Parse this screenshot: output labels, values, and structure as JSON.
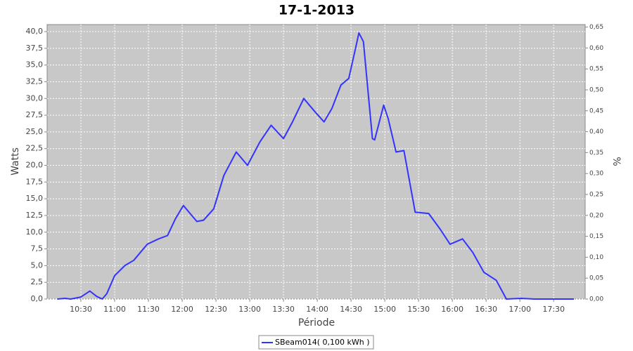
{
  "chart_data": {
    "type": "line",
    "title": "17-1-2013",
    "x_label": "Période",
    "y_label": "Watts",
    "y2_label": "%",
    "x": [
      "10:09",
      "10:16",
      "10:21",
      "10:30",
      "10:38",
      "10:44",
      "10:49",
      "10:53",
      "11:00",
      "11:09",
      "11:17",
      "11:29",
      "11:39",
      "11:47",
      "11:54",
      "12:01",
      "12:07",
      "12:13",
      "12:19",
      "12:28",
      "12:37",
      "12:48",
      "12:58",
      "13:09",
      "13:19",
      "13:30",
      "13:38",
      "13:48",
      "13:58",
      "14:06",
      "14:13",
      "14:21",
      "14:28",
      "14:34",
      "14:37",
      "14:41",
      "14:49",
      "14:51",
      "14:59",
      "15:03",
      "15:10",
      "15:17",
      "15:27",
      "15:39",
      "15:49",
      "15:58",
      "16:09",
      "16:18",
      "16:28",
      "16:39",
      "16:48",
      "17:01",
      "17:13",
      "17:48"
    ],
    "series": [
      {
        "name": "SBeam014( 0,100 kWh )",
        "color": "#3333ff",
        "values": [
          0,
          0.1,
          0,
          0.3,
          1.2,
          0.4,
          0,
          0.8,
          3.5,
          5.0,
          5.8,
          8.2,
          9.0,
          9.5,
          12.0,
          14.0,
          12.8,
          11.6,
          11.8,
          13.5,
          18.5,
          22.0,
          20.0,
          23.5,
          26.0,
          24.0,
          26.5,
          30.0,
          28.0,
          26.5,
          28.5,
          32.0,
          33.0,
          37.5,
          39.8,
          38.5,
          24.0,
          23.8,
          29.0,
          27.0,
          22.0,
          22.2,
          13.0,
          12.8,
          10.5,
          8.2,
          9.0,
          7.0,
          4.0,
          2.8,
          0,
          0.1,
          0,
          0
        ]
      }
    ],
    "xlim": [
      "10:00",
      "17:58"
    ],
    "xticks": [
      "10:30",
      "11:00",
      "11:30",
      "12:00",
      "12:30",
      "13:00",
      "13:30",
      "14:00",
      "14:30",
      "15:00",
      "15:30",
      "16:00",
      "16:30",
      "17:00",
      "17:30"
    ],
    "ylim": [
      0,
      41.05
    ],
    "yticks": [
      {
        "value": 0,
        "label": "0,0"
      },
      {
        "value": 2.5,
        "label": "2,5"
      },
      {
        "value": 5,
        "label": "5,0"
      },
      {
        "value": 7.5,
        "label": "7,5"
      },
      {
        "value": 10,
        "label": "10,0"
      },
      {
        "value": 12.5,
        "label": "12,5"
      },
      {
        "value": 15,
        "label": "15,0"
      },
      {
        "value": 17.5,
        "label": "17,5"
      },
      {
        "value": 20,
        "label": "20,0"
      },
      {
        "value": 22.5,
        "label": "22,5"
      },
      {
        "value": 25,
        "label": "25,0"
      },
      {
        "value": 27.5,
        "label": "27,5"
      },
      {
        "value": 30,
        "label": "30,0"
      },
      {
        "value": 32.5,
        "label": "32,5"
      },
      {
        "value": 35,
        "label": "35,0"
      },
      {
        "value": 37.5,
        "label": "37,5"
      },
      {
        "value": 40,
        "label": "40,0"
      }
    ],
    "y2lim": [
      0,
      0.656
    ],
    "y2ticks": [
      {
        "value": 0,
        "label": "0,00"
      },
      {
        "value": 0.05,
        "label": "0,05"
      },
      {
        "value": 0.1,
        "label": "0,10"
      },
      {
        "value": 0.15,
        "label": "0,15"
      },
      {
        "value": 0.2,
        "label": "0,20"
      },
      {
        "value": 0.25,
        "label": "0,25"
      },
      {
        "value": 0.3,
        "label": "0,30"
      },
      {
        "value": 0.35,
        "label": "0,35"
      },
      {
        "value": 0.4,
        "label": "0,40"
      },
      {
        "value": 0.45,
        "label": "0,45"
      },
      {
        "value": 0.5,
        "label": "0,50"
      },
      {
        "value": 0.55,
        "label": "0,55"
      },
      {
        "value": 0.6,
        "label": "0,60"
      },
      {
        "value": 0.65,
        "label": "0,65"
      }
    ],
    "grid": true
  }
}
